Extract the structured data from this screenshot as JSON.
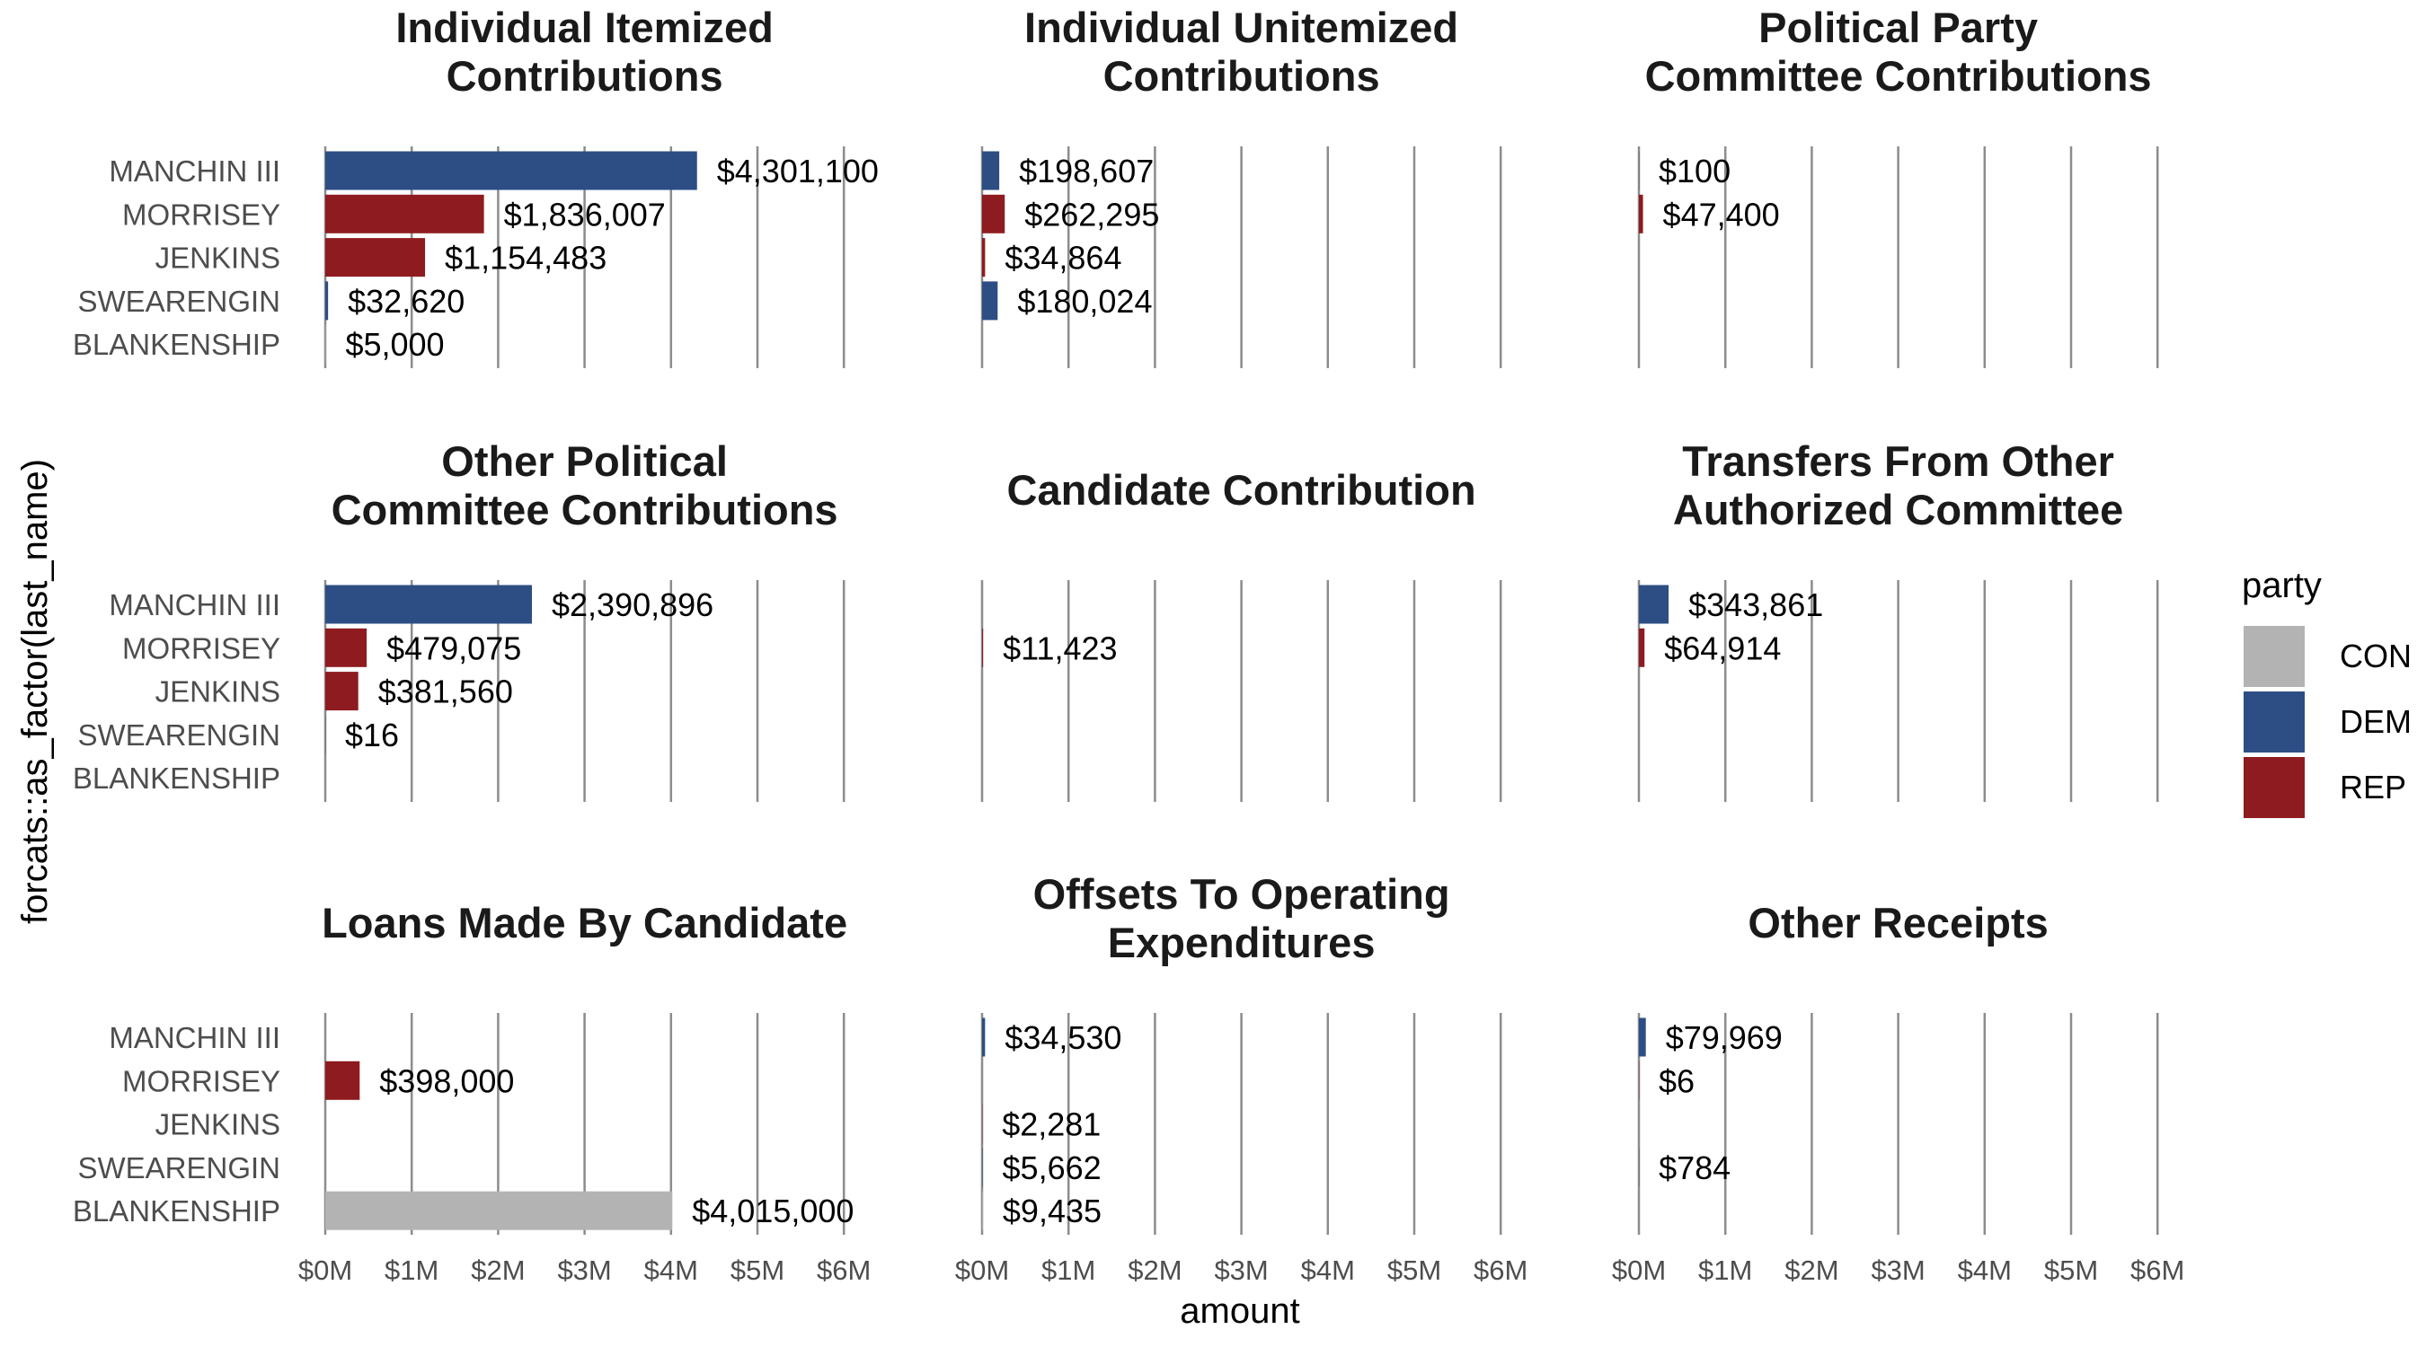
{
  "chart_data": {
    "type": "bar",
    "orientation": "horizontal",
    "xlabel": "amount",
    "ylabel": "forcats::as_factor(last_name)",
    "categories": [
      "MANCHIN III",
      "MORRISEY",
      "JENKINS",
      "SWEARENGIN",
      "BLANKENSHIP"
    ],
    "party_of": {
      "MANCHIN III": "DEM",
      "MORRISEY": "REP",
      "JENKINS": "REP",
      "SWEARENGIN": "DEM",
      "BLANKENSHIP": "CON"
    },
    "xlim": [
      0,
      6000000
    ],
    "xticks": [
      0,
      1000000,
      2000000,
      3000000,
      4000000,
      5000000,
      6000000
    ],
    "xtick_labels": [
      "$0M",
      "$1M",
      "$2M",
      "$3M",
      "$4M",
      "$5M",
      "$6M"
    ],
    "grid": true,
    "legend": {
      "title": "party",
      "position": "right",
      "entries": [
        {
          "label": "CON",
          "color": "#B3B3B3"
        },
        {
          "label": "DEM",
          "color": "#2D4E84"
        },
        {
          "label": "REP",
          "color": "#8E1B1F"
        }
      ]
    },
    "panels": [
      {
        "title_lines": [
          "Individual Itemized",
          "Contributions"
        ],
        "bars": [
          {
            "category": "MANCHIN III",
            "value": 4301100,
            "label": "$4,301,100"
          },
          {
            "category": "MORRISEY",
            "value": 1836007,
            "label": "$1,836,007"
          },
          {
            "category": "JENKINS",
            "value": 1154483,
            "label": "$1,154,483"
          },
          {
            "category": "SWEARENGIN",
            "value": 32620,
            "label": "$32,620"
          },
          {
            "category": "BLANKENSHIP",
            "value": 5000,
            "label": "$5,000"
          }
        ]
      },
      {
        "title_lines": [
          "Individual Unitemized",
          "Contributions"
        ],
        "bars": [
          {
            "category": "MANCHIN III",
            "value": 198607,
            "label": "$198,607"
          },
          {
            "category": "MORRISEY",
            "value": 262295,
            "label": "$262,295"
          },
          {
            "category": "JENKINS",
            "value": 34864,
            "label": "$34,864"
          },
          {
            "category": "SWEARENGIN",
            "value": 180024,
            "label": "$180,024"
          }
        ]
      },
      {
        "title_lines": [
          "Political Party",
          "Committee Contributions"
        ],
        "bars": [
          {
            "category": "MANCHIN III",
            "value": 100,
            "label": "$100"
          },
          {
            "category": "MORRISEY",
            "value": 47400,
            "label": "$47,400"
          }
        ]
      },
      {
        "title_lines": [
          "Other Political",
          "Committee Contributions"
        ],
        "bars": [
          {
            "category": "MANCHIN III",
            "value": 2390896,
            "label": "$2,390,896"
          },
          {
            "category": "MORRISEY",
            "value": 479075,
            "label": "$479,075"
          },
          {
            "category": "JENKINS",
            "value": 381560,
            "label": "$381,560"
          },
          {
            "category": "SWEARENGIN",
            "value": 16,
            "label": "$16"
          }
        ]
      },
      {
        "title_lines": [
          "Candidate Contribution"
        ],
        "bars": [
          {
            "category": "MORRISEY",
            "value": 11423,
            "label": "$11,423"
          }
        ]
      },
      {
        "title_lines": [
          "Transfers From Other",
          "Authorized Committee"
        ],
        "bars": [
          {
            "category": "MANCHIN III",
            "value": 343861,
            "label": "$343,861"
          },
          {
            "category": "MORRISEY",
            "value": 64914,
            "label": "$64,914"
          }
        ]
      },
      {
        "title_lines": [
          "Loans Made By Candidate"
        ],
        "bars": [
          {
            "category": "MORRISEY",
            "value": 398000,
            "label": "$398,000"
          },
          {
            "category": "BLANKENSHIP",
            "value": 4015000,
            "label": "$4,015,000"
          }
        ]
      },
      {
        "title_lines": [
          "Offsets To Operating",
          "Expenditures"
        ],
        "bars": [
          {
            "category": "MANCHIN III",
            "value": 34530,
            "label": "$34,530"
          },
          {
            "category": "JENKINS",
            "value": 2281,
            "label": "$2,281"
          },
          {
            "category": "SWEARENGIN",
            "value": 5662,
            "label": "$5,662"
          },
          {
            "category": "BLANKENSHIP",
            "value": 9435,
            "label": "$9,435"
          }
        ]
      },
      {
        "title_lines": [
          "Other Receipts"
        ],
        "bars": [
          {
            "category": "MANCHIN III",
            "value": 79969,
            "label": "$79,969"
          },
          {
            "category": "MORRISEY",
            "value": 6,
            "label": "$6"
          },
          {
            "category": "SWEARENGIN",
            "value": 784,
            "label": "$784"
          }
        ]
      }
    ]
  }
}
